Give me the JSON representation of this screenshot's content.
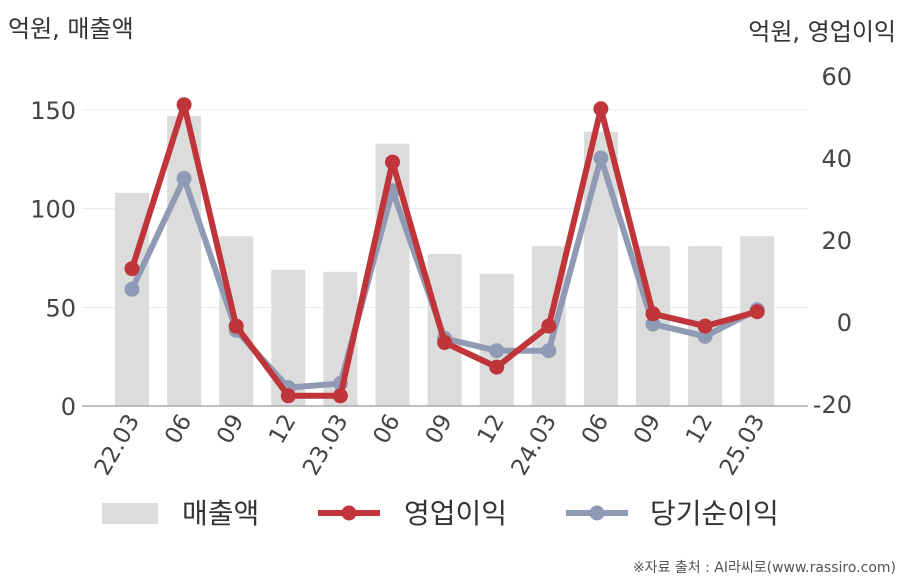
{
  "chart_data": {
    "type": "bar",
    "left_axis_label": "억원, 매출액",
    "right_axis_label": "억원, 영업이익",
    "categories": [
      "22.03",
      "06",
      "09",
      "12",
      "23.03",
      "06",
      "09",
      "12",
      "24.03",
      "06",
      "09",
      "12",
      "25.03"
    ],
    "left_axis": {
      "ticks": [
        "0",
        "50",
        "100",
        "150"
      ],
      "tick_values": [
        0,
        50,
        100,
        150
      ],
      "range": [
        0,
        150
      ]
    },
    "right_axis": {
      "ticks": [
        "-20",
        "0",
        "20",
        "40",
        "60"
      ],
      "tick_values": [
        -20,
        0,
        20,
        40,
        60
      ],
      "range": [
        -20,
        60
      ]
    },
    "grid": true,
    "legend_position": "bottom",
    "series": [
      {
        "name": "매출액",
        "type": "bar",
        "axis": "left",
        "color": "#dcdcdc",
        "values": [
          108,
          147,
          86,
          69,
          68,
          133,
          77,
          67,
          81,
          139,
          81,
          81,
          86
        ]
      },
      {
        "name": "영업이익",
        "type": "line",
        "axis": "right",
        "color": "#c0353a",
        "values": [
          13,
          53,
          -1,
          -18,
          -18,
          39,
          -5,
          -11,
          -1,
          52,
          2,
          -1,
          2.5
        ]
      },
      {
        "name": "당기순이익",
        "type": "line",
        "axis": "right",
        "color": "#8f9bb5",
        "values": [
          8,
          35,
          -2,
          -16,
          -15,
          32,
          -4,
          -7,
          -7,
          40,
          -0.5,
          -3.5,
          3
        ]
      }
    ]
  },
  "source": "※자료 출처 : AI라씨로(www.rassiro.com)"
}
